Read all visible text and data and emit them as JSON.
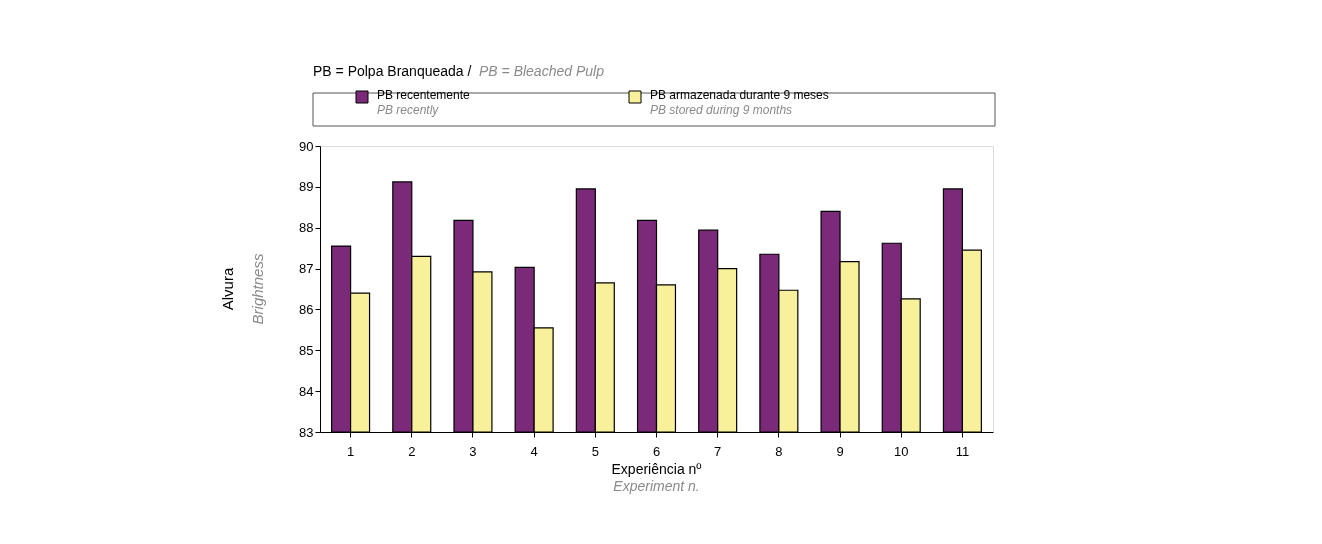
{
  "chart_data": {
    "type": "bar",
    "title": "PB = Polpa Branqueada /",
    "subtitle": "PB = Bleached Pulp",
    "xlabel": "Experiência nº\nExperiment n.",
    "ylabel": "Alvura\nBrightness",
    "categories": [
      "1",
      "2",
      "3",
      "4",
      "5",
      "6",
      "7",
      "8",
      "9",
      "10",
      "11"
    ],
    "series": [
      {
        "name": "PB recentemente\nPB recently",
        "color": "#7b2a7a",
        "values": [
          87.55,
          89.12,
          88.18,
          87.03,
          88.95,
          88.18,
          87.94,
          87.35,
          88.4,
          87.62,
          88.95
        ]
      },
      {
        "name": "PB armazenada durante 9 meses\nPB stored during 9 months",
        "color": "#f8f09a",
        "values": [
          86.4,
          87.3,
          86.92,
          85.55,
          86.65,
          86.6,
          87.0,
          86.47,
          87.17,
          86.26,
          87.45
        ]
      }
    ],
    "ylim": [
      83,
      90
    ],
    "yticks": [
      83,
      84,
      85,
      86,
      87,
      88,
      89,
      90
    ],
    "grid": false,
    "legend": "top"
  }
}
